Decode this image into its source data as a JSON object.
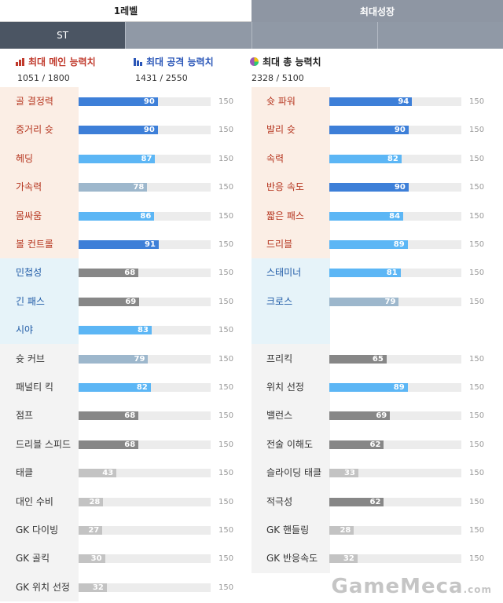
{
  "tabs": {
    "level1": "1레벨",
    "max_growth": "최대성장"
  },
  "position_tabs": [
    "ST",
    "",
    "",
    ""
  ],
  "legend": {
    "main": {
      "label": "최대 메인 능력치",
      "value": "1051 / 1800"
    },
    "attack": {
      "label": "최대 공격 능력치",
      "value": "1431 / 2550"
    },
    "total": {
      "label": "최대 총 능력치",
      "value": "2328 / 5100"
    }
  },
  "colors": {
    "dark_blue": "#3d7fd8",
    "light_blue": "#5cb6f5",
    "steel": "#9db7cc",
    "gray": "#878787",
    "light_gray": "#c3c3c3",
    "main_bg": "#fbeee5",
    "sub_bg": "#e6f3f9"
  },
  "max_label": "150",
  "left_stats": [
    {
      "label": "골 결정력",
      "value": 90,
      "color": "dark_blue",
      "group": "main"
    },
    {
      "label": "중거리 슛",
      "value": 90,
      "color": "dark_blue",
      "group": "main"
    },
    {
      "label": "헤딩",
      "value": 87,
      "color": "light_blue",
      "group": "main"
    },
    {
      "label": "가속력",
      "value": 78,
      "color": "steel",
      "group": "main"
    },
    {
      "label": "몸싸움",
      "value": 86,
      "color": "light_blue",
      "group": "main"
    },
    {
      "label": "볼 컨트롤",
      "value": 91,
      "color": "dark_blue",
      "group": "main"
    },
    {
      "label": "민첩성",
      "value": 68,
      "color": "gray",
      "group": "sub"
    },
    {
      "label": "긴 패스",
      "value": 69,
      "color": "gray",
      "group": "sub"
    },
    {
      "label": "시야",
      "value": 83,
      "color": "light_blue",
      "group": "sub"
    },
    {
      "label": "슛 커브",
      "value": 79,
      "color": "steel",
      "group": "plain"
    },
    {
      "label": "패널티 킥",
      "value": 82,
      "color": "light_blue",
      "group": "plain"
    },
    {
      "label": "점프",
      "value": 68,
      "color": "gray",
      "group": "plain"
    },
    {
      "label": "드리블 스피드",
      "value": 68,
      "color": "gray",
      "group": "plain"
    },
    {
      "label": "태클",
      "value": 43,
      "color": "light_gray",
      "group": "plain"
    },
    {
      "label": "대인 수비",
      "value": 28,
      "color": "light_gray",
      "group": "plain"
    },
    {
      "label": "GK 다이빙",
      "value": 27,
      "color": "light_gray",
      "group": "plain"
    },
    {
      "label": "GK 골킥",
      "value": 30,
      "color": "light_gray",
      "group": "plain"
    },
    {
      "label": "GK 위치 선정",
      "value": 32,
      "color": "light_gray",
      "group": "plain"
    }
  ],
  "right_stats": [
    {
      "label": "슛 파워",
      "value": 94,
      "color": "dark_blue",
      "group": "main"
    },
    {
      "label": "발리 슛",
      "value": 90,
      "color": "dark_blue",
      "group": "main"
    },
    {
      "label": "속력",
      "value": 82,
      "color": "light_blue",
      "group": "main"
    },
    {
      "label": "반응 속도",
      "value": 90,
      "color": "dark_blue",
      "group": "main"
    },
    {
      "label": "짧은 패스",
      "value": 84,
      "color": "light_blue",
      "group": "main"
    },
    {
      "label": "드리블",
      "value": 89,
      "color": "light_blue",
      "group": "main"
    },
    {
      "label": "스태미너",
      "value": 81,
      "color": "light_blue",
      "group": "sub"
    },
    {
      "label": "크로스",
      "value": 79,
      "color": "steel",
      "group": "sub"
    },
    {
      "label": "",
      "value": null,
      "color": "",
      "group": "sub"
    },
    {
      "label": "프리킥",
      "value": 65,
      "color": "gray",
      "group": "plain"
    },
    {
      "label": "위치 선정",
      "value": 89,
      "color": "light_blue",
      "group": "plain"
    },
    {
      "label": "밸런스",
      "value": 69,
      "color": "gray",
      "group": "plain"
    },
    {
      "label": "전술 이해도",
      "value": 62,
      "color": "gray",
      "group": "plain"
    },
    {
      "label": "슬라이딩 태클",
      "value": 33,
      "color": "light_gray",
      "group": "plain"
    },
    {
      "label": "적극성",
      "value": 62,
      "color": "gray",
      "group": "plain"
    },
    {
      "label": "GK 핸들링",
      "value": 28,
      "color": "light_gray",
      "group": "plain"
    },
    {
      "label": "GK 반응속도",
      "value": 32,
      "color": "light_gray",
      "group": "plain"
    }
  ],
  "watermark": {
    "brand": "GameMeca",
    "suffix": ".com"
  }
}
